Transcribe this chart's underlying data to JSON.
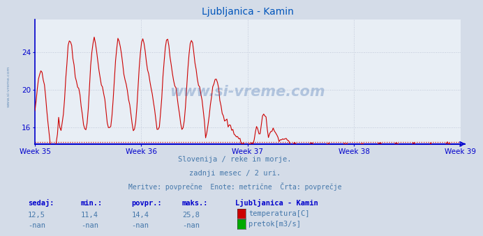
{
  "title": "Ljubljanica - Kamin",
  "bg_color": "#d4dce8",
  "plot_bg_color": "#e8eef5",
  "line_color_temp": "#cc0000",
  "grid_color": "#c0c8d8",
  "axis_color": "#0000cc",
  "text_color": "#4477aa",
  "week_labels": [
    "Week 35",
    "Week 36",
    "Week 37",
    "Week 38",
    "Week 39"
  ],
  "yticks": [
    16,
    20,
    24
  ],
  "ylim": [
    14.2,
    27.5
  ],
  "subtitle1": "Slovenija / reke in morje.",
  "subtitle2": "zadnji mesec / 2 uri.",
  "subtitle3": "Meritve: povprečne  Enote: metrične  Črta: povprečje",
  "footer_col1_label": "sedaj:",
  "footer_col2_label": "min.:",
  "footer_col3_label": "povpr.:",
  "footer_col4_label": "maks.:",
  "footer_col5_label": "Ljubljanica - Kamin",
  "footer_row1_val1": "12,5",
  "footer_row1_val2": "11,4",
  "footer_row1_val3": "14,4",
  "footer_row1_val4": "25,8",
  "footer_row2_val1": "-nan",
  "footer_row2_val2": "-nan",
  "footer_row2_val3": "-nan",
  "footer_row2_val4": "-nan",
  "legend1_color": "#cc0000",
  "legend1_label": "temperatura[C]",
  "legend2_color": "#00aa00",
  "legend2_label": "pretok[m3/s]",
  "avg_value": 14.4,
  "watermark": "www.si-vreme.com"
}
